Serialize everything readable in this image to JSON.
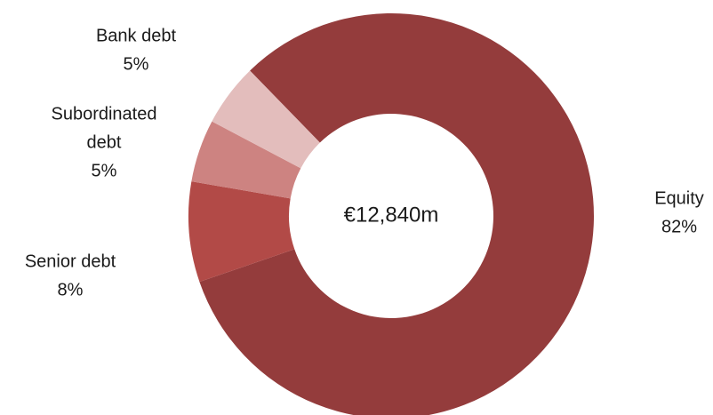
{
  "chart_data": {
    "type": "pie",
    "variant": "donut",
    "center_label": "€12,840m",
    "slices": [
      {
        "category": "Equity",
        "label_lines": [
          "Equity"
        ],
        "value_text": "82%",
        "value": 82,
        "color": "#943c3c"
      },
      {
        "category": "Senior debt",
        "label_lines": [
          "Senior debt"
        ],
        "value_text": "8%",
        "value": 8,
        "color": "#b24a47"
      },
      {
        "category": "Subordinated debt",
        "label_lines": [
          "Subordinated",
          "debt"
        ],
        "value_text": "5%",
        "value": 5,
        "color": "#cd8381"
      },
      {
        "category": "Bank debt",
        "label_lines": [
          "Bank debt"
        ],
        "value_text": "5%",
        "value": 5,
        "color": "#e3bdbc"
      }
    ],
    "legend": "none"
  }
}
